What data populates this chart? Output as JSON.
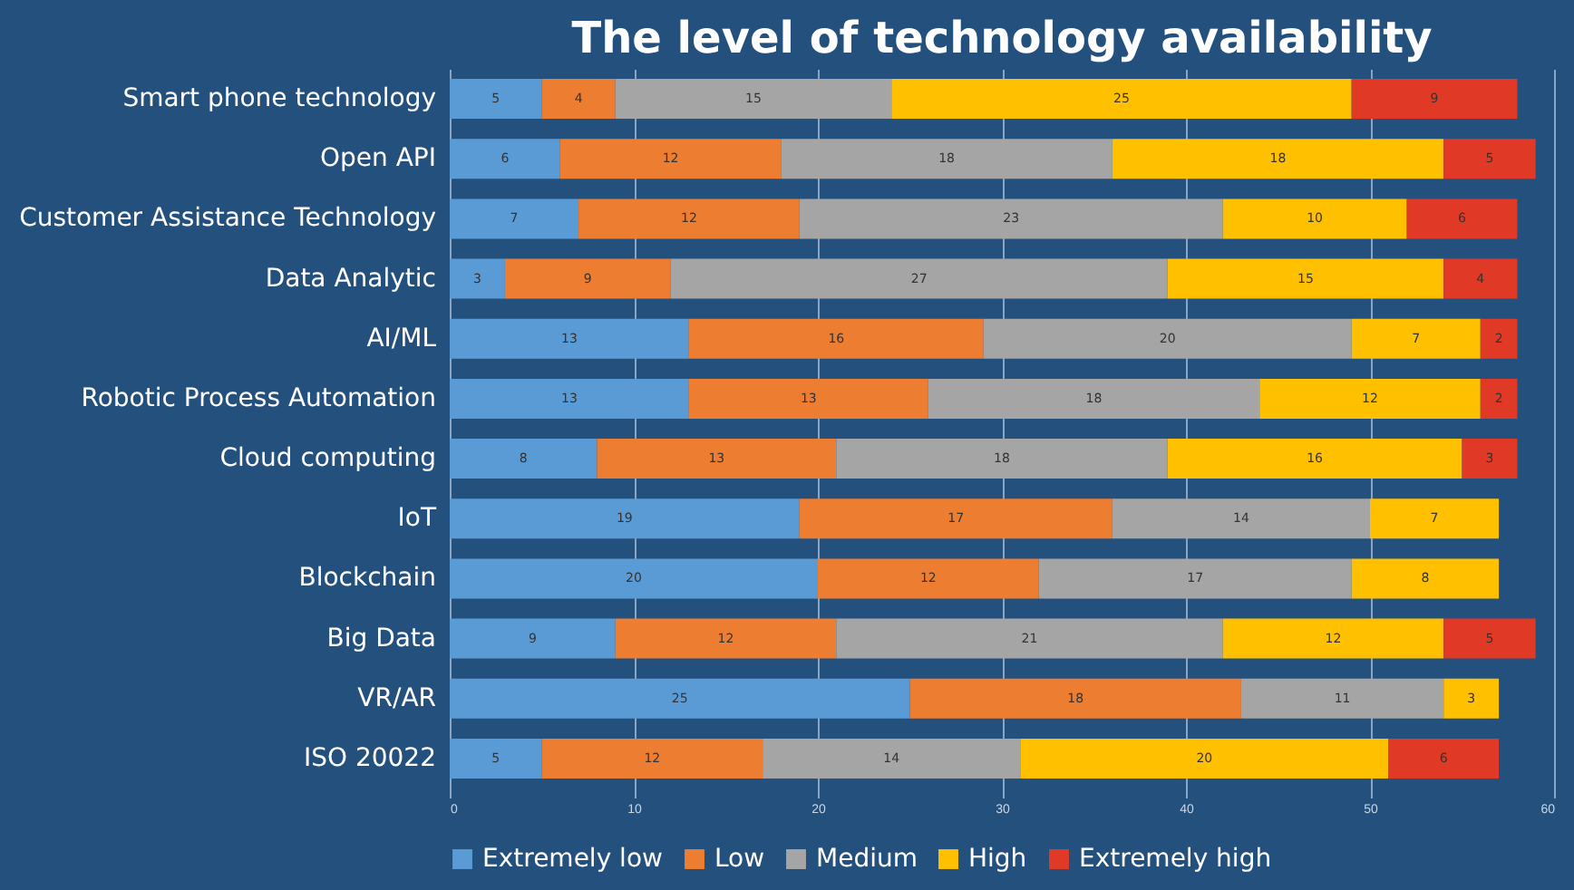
{
  "chart_data": {
    "type": "bar",
    "orientation": "horizontal",
    "stacked": true,
    "title": "The level of technology availability",
    "categories": [
      "Smart phone technology",
      "Open API",
      "Customer Assistance Technology",
      "Data Analytic",
      "AI/ML",
      "Robotic Process Automation",
      "Cloud computing",
      "IoT",
      "Blockchain",
      "Big Data",
      "VR/AR",
      "ISO 20022"
    ],
    "series": [
      {
        "name": "Extremely low",
        "color": "#5b9bd5",
        "values": [
          5,
          6,
          7,
          3,
          13,
          13,
          8,
          19,
          20,
          9,
          25,
          5
        ],
        "value_labels": [
          "5",
          "6",
          "7",
          "3",
          "13",
          "13",
          "8",
          "19",
          "20",
          "9",
          "25",
          "5"
        ]
      },
      {
        "name": "Low",
        "color": "#ed7d31",
        "values": [
          4,
          12,
          12,
          9,
          16,
          13,
          13,
          17,
          12,
          12,
          18,
          12
        ],
        "value_labels": [
          "4",
          "12",
          "12",
          "9",
          "16",
          "13",
          "13",
          "17",
          "12",
          "12",
          "18",
          "12"
        ]
      },
      {
        "name": "Medium",
        "color": "#a5a5a5",
        "values": [
          15,
          18,
          23,
          27,
          20,
          18,
          18,
          14,
          17,
          21,
          11,
          14
        ],
        "value_labels": [
          "15",
          "18",
          "23",
          "27",
          "20",
          "18",
          "18",
          "14",
          "17",
          "21",
          "11",
          "14"
        ]
      },
      {
        "name": "High",
        "color": "#ffc000",
        "values": [
          25,
          18,
          10,
          15,
          7,
          12,
          16,
          7,
          8,
          12,
          3,
          20
        ],
        "value_labels": [
          "25",
          "18",
          "10",
          "15",
          "7",
          "12",
          "16",
          "7",
          "8",
          "12",
          "3",
          "20"
        ]
      },
      {
        "name": "Extremely high",
        "color": "#e03a26",
        "values": [
          9,
          5,
          6,
          4,
          2,
          2,
          3,
          0,
          0,
          5,
          0,
          6
        ],
        "value_labels": [
          "9",
          "5",
          "6",
          "4",
          "2",
          "2",
          "3",
          null,
          null,
          "5",
          null,
          "6"
        ]
      }
    ],
    "xlim": [
      0,
      60
    ],
    "xticks": [
      0,
      10,
      20,
      30,
      40,
      50,
      60
    ],
    "grid": "x",
    "legend": "bottom"
  }
}
